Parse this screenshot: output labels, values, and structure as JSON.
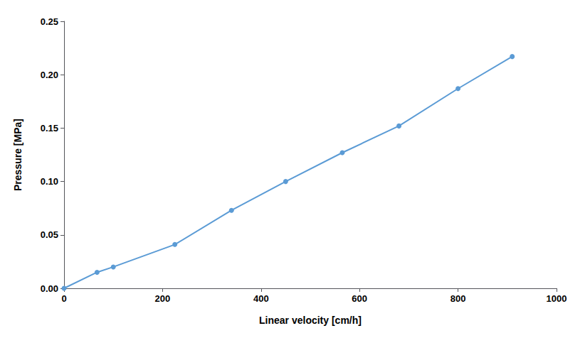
{
  "chart_data": {
    "type": "line",
    "x": [
      0,
      67,
      100,
      225,
      340,
      450,
      565,
      680,
      800,
      910
    ],
    "values": [
      0.0,
      0.015,
      0.02,
      0.041,
      0.073,
      0.1,
      0.127,
      0.152,
      0.187,
      0.217
    ],
    "color": "#5B9BD5",
    "marker": "circle",
    "xlabel": "Linear velocity [cm/h]",
    "ylabel": "Pressure [MPa]",
    "xlim": [
      0,
      1000
    ],
    "ylim": [
      0.0,
      0.25
    ],
    "xticks": [
      0,
      200,
      400,
      600,
      800,
      1000
    ],
    "yticks": [
      {
        "value": 0,
        "label": "0.00"
      },
      0.05,
      {
        "value": 0.1,
        "label": "0.10"
      },
      0.15,
      {
        "value": 0.2,
        "label": "0.20"
      },
      0.25
    ],
    "grid": false
  }
}
